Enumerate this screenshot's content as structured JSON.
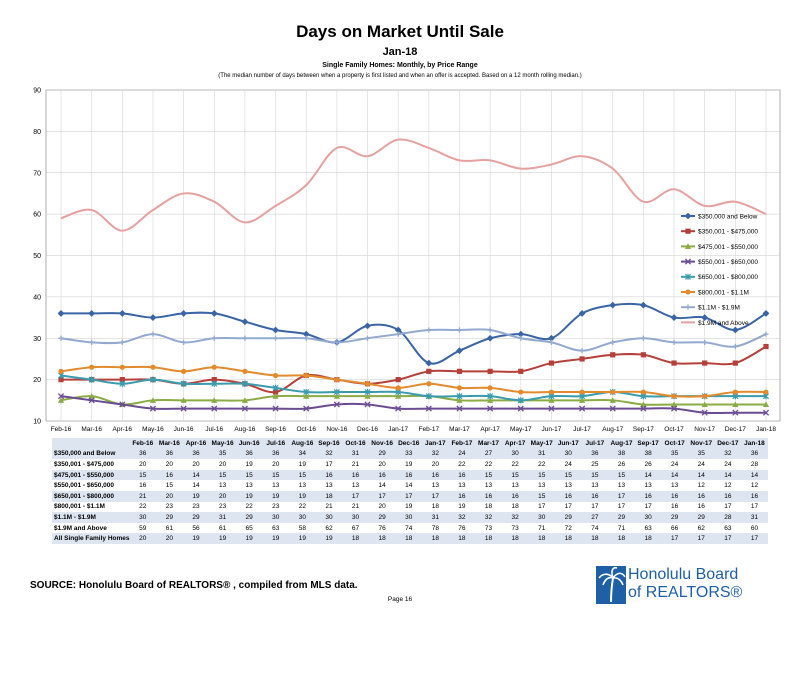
{
  "header": {
    "title": "Days on Market Until Sale",
    "period": "Jan-18",
    "subtitle": "Single Family Homes: Monthly, by Price Range",
    "note": "(The median number of days between when a property is first listed and when an offer is accepted. Based on a 12 month rolling median.)"
  },
  "chart_data": {
    "type": "line",
    "title": "Days on Market Until Sale",
    "ylim": [
      10,
      90
    ],
    "yticks": [
      10,
      20,
      30,
      40,
      50,
      60,
      70,
      80,
      90
    ],
    "grid": true,
    "legend_position": "right",
    "categories": [
      "Feb-16",
      "Mar-16",
      "Apr-16",
      "May-16",
      "Jun-16",
      "Jul-16",
      "Aug-16",
      "Sep-16",
      "Oct-16",
      "Nov-16",
      "Dec-16",
      "Jan-17",
      "Feb-17",
      "Mar-17",
      "Apr-17",
      "May-17",
      "Jun-17",
      "Jul-17",
      "Aug-17",
      "Sep-17",
      "Oct-17",
      "Nov-17",
      "Dec-17",
      "Jan-18"
    ],
    "xticks": [
      "Feb-16",
      "Mar-16",
      "Apr-16",
      "May-16",
      "Jun-16",
      "Jul-16",
      "Aug-16",
      "Sep-16",
      "Oct-16",
      "Nov-16",
      "Dec-16",
      "Jan-17",
      "Feb-17",
      "Mar-17",
      "Apr-17",
      "May-17",
      "Jun-17",
      "Jul-17",
      "Aug-17",
      "Sep-17",
      "Oct-17",
      "Nov-17",
      "Dec-17",
      "Jan-18"
    ],
    "series": [
      {
        "name": "$350,000 and Below",
        "color": "#3b64a5",
        "marker": "diamond",
        "values": [
          36,
          36,
          36,
          35,
          36,
          36,
          34,
          32,
          31,
          29,
          33,
          32,
          24,
          27,
          30,
          31,
          30,
          36,
          38,
          38,
          35,
          35,
          32,
          36
        ]
      },
      {
        "name": "$350,001 - $475,000",
        "color": "#b5403a",
        "marker": "square",
        "values": [
          20,
          20,
          20,
          20,
          19,
          20,
          19,
          17,
          21,
          20,
          19,
          20,
          22,
          22,
          22,
          22,
          24,
          25,
          26,
          26,
          24,
          24,
          24,
          28
        ]
      },
      {
        "name": "$475,001 - $550,000",
        "color": "#8aab45",
        "marker": "triangle",
        "values": [
          15,
          16,
          14,
          15,
          15,
          15,
          15,
          16,
          16,
          16,
          16,
          16,
          16,
          15,
          15,
          15,
          15,
          15,
          15,
          14,
          14,
          14,
          14,
          14
        ]
      },
      {
        "name": "$550,001 - $650,000",
        "color": "#6a4c93",
        "marker": "x",
        "values": [
          16,
          15,
          14,
          13,
          13,
          13,
          13,
          13,
          13,
          14,
          14,
          13,
          13,
          13,
          13,
          13,
          13,
          13,
          13,
          13,
          13,
          12,
          12,
          12
        ]
      },
      {
        "name": "$650,001 - $800,000",
        "color": "#3a9bad",
        "marker": "star",
        "values": [
          21,
          20,
          19,
          20,
          19,
          19,
          19,
          18,
          17,
          17,
          17,
          17,
          16,
          16,
          16,
          15,
          16,
          16,
          17,
          16,
          16,
          16,
          16,
          16
        ]
      },
      {
        "name": "$800,001 - $1.1M",
        "color": "#e38a2e",
        "marker": "circle",
        "values": [
          22,
          23,
          23,
          23,
          22,
          23,
          22,
          21,
          21,
          20,
          19,
          18,
          19,
          18,
          18,
          17,
          17,
          17,
          17,
          17,
          16,
          16,
          17,
          17
        ]
      },
      {
        "name": "$1.1M - $1.9M",
        "color": "#93a9d0",
        "marker": "plus",
        "values": [
          30,
          29,
          29,
          31,
          29,
          30,
          30,
          30,
          30,
          29,
          30,
          31,
          32,
          32,
          32,
          30,
          29,
          27,
          29,
          30,
          29,
          29,
          28,
          31
        ]
      },
      {
        "name": "$1.9M and Above",
        "color": "#e5a1a0",
        "marker": "none",
        "values": [
          59,
          61,
          56,
          61,
          65,
          63,
          58,
          62,
          67,
          76,
          74,
          78,
          76,
          73,
          73,
          71,
          72,
          74,
          71,
          63,
          66,
          62,
          63,
          60
        ]
      }
    ]
  },
  "table": {
    "headers": [
      "Feb-16",
      "Mar-16",
      "Apr-16",
      "May-16",
      "Jun-16",
      "Jul-16",
      "Aug-16",
      "Sep-16",
      "Oct-16",
      "Nov-16",
      "Dec-16",
      "Jan-17",
      "Feb-17",
      "Mar-17",
      "Apr-17",
      "May-17",
      "Jun-17",
      "Jul-17",
      "Aug-17",
      "Sep-17",
      "Oct-17",
      "Nov-17",
      "Dec-17",
      "Jan-18"
    ],
    "rows": [
      {
        "label": "$350,000 and Below",
        "values": [
          36,
          36,
          36,
          35,
          36,
          36,
          34,
          32,
          31,
          29,
          33,
          32,
          24,
          27,
          30,
          31,
          30,
          36,
          38,
          38,
          35,
          35,
          32,
          36
        ]
      },
      {
        "label": "$350,001 - $475,000",
        "values": [
          20,
          20,
          20,
          20,
          19,
          20,
          19,
          17,
          21,
          20,
          19,
          20,
          22,
          22,
          22,
          22,
          24,
          25,
          26,
          26,
          24,
          24,
          24,
          28
        ]
      },
      {
        "label": "$475,001 - $550,000",
        "values": [
          15,
          16,
          14,
          15,
          15,
          15,
          15,
          16,
          16,
          16,
          16,
          16,
          16,
          15,
          15,
          15,
          15,
          15,
          15,
          14,
          14,
          14,
          14,
          14
        ]
      },
      {
        "label": "$550,001 - $650,000",
        "values": [
          16,
          15,
          14,
          13,
          13,
          13,
          13,
          13,
          13,
          14,
          14,
          13,
          13,
          13,
          13,
          13,
          13,
          13,
          13,
          13,
          13,
          12,
          12,
          12
        ]
      },
      {
        "label": "$650,001 - $800,000",
        "values": [
          21,
          20,
          19,
          20,
          19,
          19,
          19,
          18,
          17,
          17,
          17,
          17,
          16,
          16,
          16,
          15,
          16,
          16,
          17,
          16,
          16,
          16,
          16,
          16
        ]
      },
      {
        "label": "$800,001 - $1.1M",
        "values": [
          22,
          23,
          23,
          23,
          22,
          23,
          22,
          21,
          21,
          20,
          19,
          18,
          19,
          18,
          18,
          17,
          17,
          17,
          17,
          17,
          16,
          16,
          17,
          17
        ]
      },
      {
        "label": "$1.1M - $1.9M",
        "values": [
          30,
          29,
          29,
          31,
          29,
          30,
          30,
          30,
          30,
          29,
          30,
          31,
          32,
          32,
          32,
          30,
          29,
          27,
          29,
          30,
          29,
          29,
          28,
          31
        ]
      },
      {
        "label": "$1.9M and Above",
        "values": [
          59,
          61,
          56,
          61,
          65,
          63,
          58,
          62,
          67,
          76,
          74,
          78,
          76,
          73,
          73,
          71,
          72,
          74,
          71,
          63,
          66,
          62,
          63,
          60
        ]
      },
      {
        "label": "All Single Family Homes",
        "values": [
          20,
          20,
          19,
          19,
          19,
          19,
          19,
          19,
          18,
          18,
          18,
          18,
          18,
          18,
          18,
          18,
          18,
          18,
          18,
          18,
          17,
          17,
          17,
          17
        ]
      }
    ]
  },
  "footer": {
    "source": "SOURCE:  Honolulu Board of REALTORS® , compiled from MLS data.",
    "page": "Page 16",
    "logo_line1": "Honolulu Board",
    "logo_line2": "of REALTORS®"
  }
}
